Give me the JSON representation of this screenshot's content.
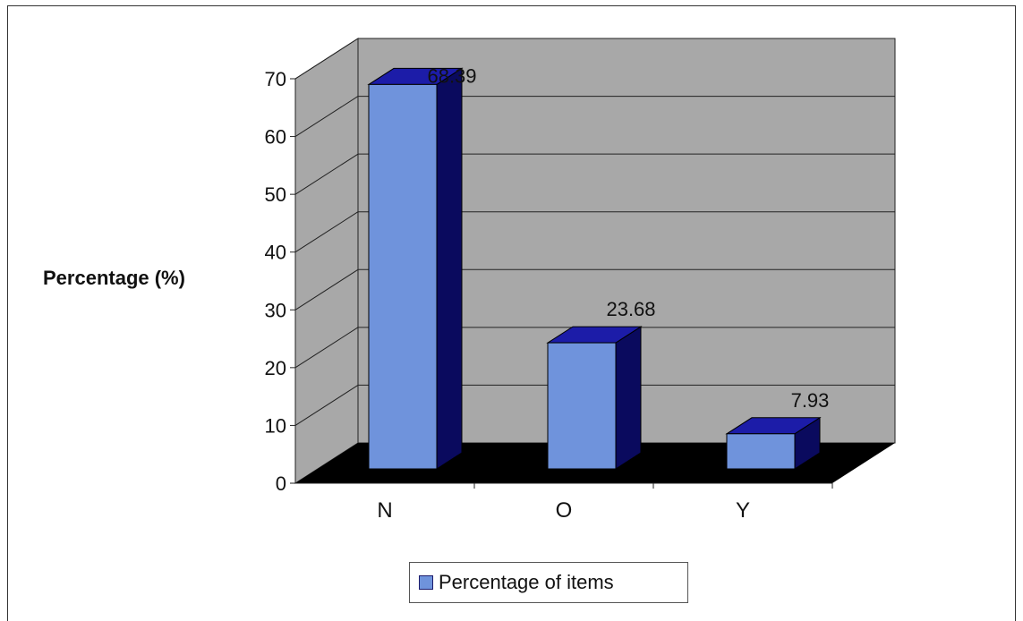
{
  "chart_data": {
    "type": "bar",
    "categories": [
      "N",
      "O",
      "Y"
    ],
    "series": [
      {
        "name": "Percentage of items",
        "values": [
          68.39,
          23.68,
          7.93
        ]
      }
    ],
    "data_labels": [
      "68.39",
      "23.68",
      "7.93"
    ],
    "ylabel": "Percentage (%)",
    "xlabel": "",
    "title": "",
    "ylim": [
      0,
      70
    ],
    "y_ticks": [
      0,
      10,
      20,
      30,
      40,
      50,
      60,
      70
    ],
    "grid": true,
    "legend_position": "bottom",
    "style": "3d",
    "colors": {
      "bar_front": "#6f93dc",
      "bar_side": "#0a0a5e",
      "bar_top": "#1c1ca8",
      "wall": "#a8a8a8",
      "floor": "#000000",
      "gridline": "#222222"
    }
  }
}
